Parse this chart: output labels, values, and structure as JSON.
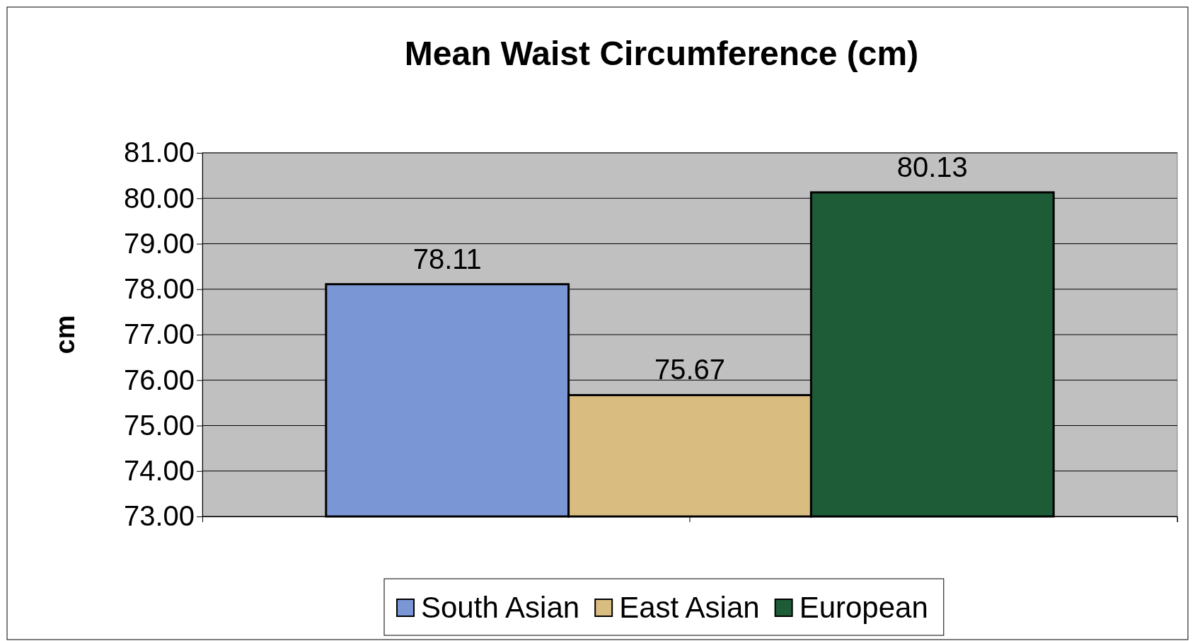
{
  "chart_data": {
    "type": "bar",
    "title": "Mean Waist Circumference (cm)",
    "ylabel": "cm",
    "categories": [
      null
    ],
    "series": [
      {
        "name": "South Asian",
        "color": "#7a96d4",
        "values": [
          78.11
        ]
      },
      {
        "name": "East Asian",
        "color": "#d9bd80",
        "values": [
          75.67
        ]
      },
      {
        "name": "European",
        "color": "#1e5c38",
        "values": [
          80.13
        ]
      }
    ],
    "ylim": [
      73,
      81
    ],
    "yticks": [
      {
        "value": 73,
        "label": "73.00"
      },
      {
        "value": 74,
        "label": "74.00"
      },
      {
        "value": 75,
        "label": "75.00"
      },
      {
        "value": 76,
        "label": "76.00"
      },
      {
        "value": 77,
        "label": "77.00"
      },
      {
        "value": 78,
        "label": "78.00"
      },
      {
        "value": 79,
        "label": "79.00"
      },
      {
        "value": 80,
        "label": "80.00"
      },
      {
        "value": 81,
        "label": "81.00"
      }
    ],
    "grid": "y",
    "data_labels": true,
    "legend": "bottom"
  }
}
